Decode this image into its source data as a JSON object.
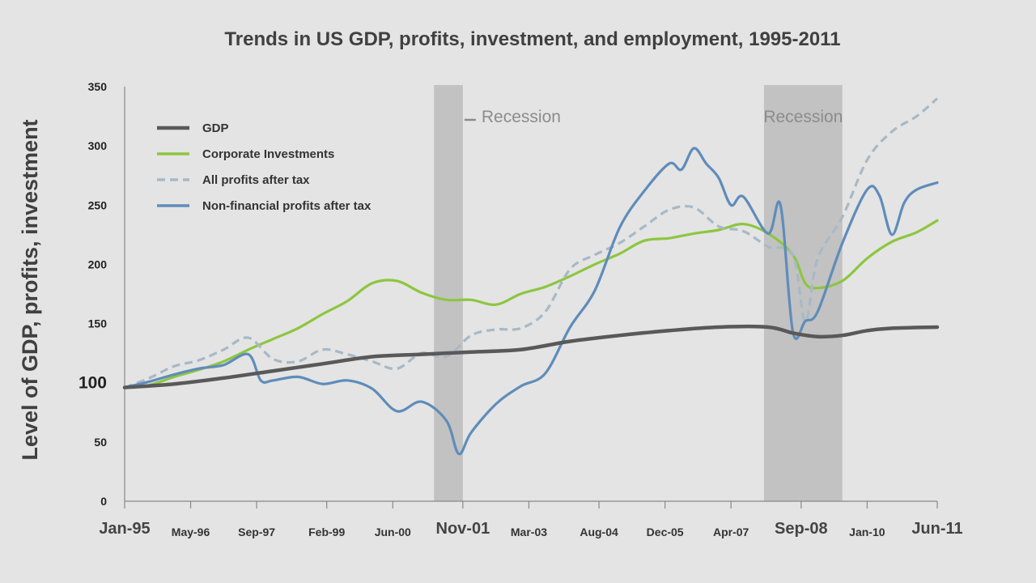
{
  "chart_data": {
    "type": "line",
    "title": "Trends in US GDP, profits, investment, and employment, 1995-2011",
    "ylabel": "Level of GDP, profits, investment",
    "xlabel": "",
    "ylim": [
      0,
      350
    ],
    "xlim": [
      1995.0,
      2011.417
    ],
    "grid": false,
    "legend_position": "top-left",
    "y_ticks": [
      {
        "value": 0,
        "label": "0",
        "big": false
      },
      {
        "value": 50,
        "label": "50",
        "big": false
      },
      {
        "value": 100,
        "label": "100",
        "big": true
      },
      {
        "value": 150,
        "label": "150",
        "big": false
      },
      {
        "value": 200,
        "label": "200",
        "big": false
      },
      {
        "value": 250,
        "label": "250",
        "big": false
      },
      {
        "value": 300,
        "label": "300",
        "big": false
      },
      {
        "value": 350,
        "label": "350",
        "big": false
      }
    ],
    "x_ticks": [
      {
        "value": 1995.0,
        "label": "Jan-95",
        "big": true
      },
      {
        "value": 1996.333,
        "label": "May-96",
        "big": false
      },
      {
        "value": 1997.667,
        "label": "Sep-97",
        "big": false
      },
      {
        "value": 1999.083,
        "label": "Feb-99",
        "big": false
      },
      {
        "value": 2000.417,
        "label": "Jun-00",
        "big": false
      },
      {
        "value": 2001.833,
        "label": "Nov-01",
        "big": true
      },
      {
        "value": 2003.167,
        "label": "Mar-03",
        "big": false
      },
      {
        "value": 2004.583,
        "label": "Aug-04",
        "big": false
      },
      {
        "value": 2005.917,
        "label": "Dec-05",
        "big": false
      },
      {
        "value": 2007.25,
        "label": "Apr-07",
        "big": false
      },
      {
        "value": 2008.667,
        "label": "Sep-08",
        "big": true
      },
      {
        "value": 2010.0,
        "label": "Jan-10",
        "big": false
      },
      {
        "value": 2011.417,
        "label": "Jun-11",
        "big": true
      }
    ],
    "recessions": [
      {
        "start": 2001.25,
        "end": 2001.833,
        "label": "Recession",
        "label_side": "right"
      },
      {
        "start": 2007.917,
        "end": 2009.5,
        "label": "Recession",
        "label_side": "inside"
      }
    ],
    "series": [
      {
        "name": "GDP",
        "color": "#595959",
        "dashed": false,
        "points": [
          [
            1995.0,
            96
          ],
          [
            1996.0,
            99
          ],
          [
            1997.0,
            104
          ],
          [
            1998.0,
            110
          ],
          [
            1999.0,
            116
          ],
          [
            2000.0,
            122
          ],
          [
            2001.0,
            124
          ],
          [
            2002.0,
            126
          ],
          [
            2003.0,
            128
          ],
          [
            2004.0,
            135
          ],
          [
            2005.0,
            140
          ],
          [
            2006.0,
            144
          ],
          [
            2007.0,
            147
          ],
          [
            2008.0,
            147
          ],
          [
            2008.5,
            142
          ],
          [
            2009.0,
            139
          ],
          [
            2009.5,
            140
          ],
          [
            2010.0,
            144
          ],
          [
            2010.5,
            146
          ],
          [
            2011.417,
            147
          ]
        ]
      },
      {
        "name": "Corporate Investments",
        "color": "#8dc63f",
        "dashed": false,
        "points": [
          [
            1995.0,
            96
          ],
          [
            1995.5,
            98
          ],
          [
            1996.0,
            105
          ],
          [
            1996.5,
            111
          ],
          [
            1997.0,
            118
          ],
          [
            1997.5,
            128
          ],
          [
            1998.0,
            137
          ],
          [
            1998.5,
            146
          ],
          [
            1999.0,
            158
          ],
          [
            1999.5,
            169
          ],
          [
            2000.0,
            184
          ],
          [
            2000.5,
            186
          ],
          [
            2001.0,
            176
          ],
          [
            2001.5,
            170
          ],
          [
            2002.0,
            170
          ],
          [
            2002.5,
            166
          ],
          [
            2003.0,
            175
          ],
          [
            2003.5,
            181
          ],
          [
            2004.0,
            190
          ],
          [
            2004.5,
            200
          ],
          [
            2005.0,
            209
          ],
          [
            2005.5,
            220
          ],
          [
            2006.0,
            222
          ],
          [
            2006.5,
            226
          ],
          [
            2007.0,
            229
          ],
          [
            2007.5,
            234
          ],
          [
            2008.0,
            226
          ],
          [
            2008.5,
            208
          ],
          [
            2008.75,
            184
          ],
          [
            2009.0,
            180
          ],
          [
            2009.5,
            186
          ],
          [
            2010.0,
            205
          ],
          [
            2010.5,
            219
          ],
          [
            2011.0,
            227
          ],
          [
            2011.417,
            237
          ]
        ]
      },
      {
        "name": "All profits after tax",
        "color": "#a7b9c7",
        "dashed": true,
        "points": [
          [
            1995.0,
            96
          ],
          [
            1995.5,
            104
          ],
          [
            1996.0,
            114
          ],
          [
            1996.5,
            119
          ],
          [
            1997.0,
            128
          ],
          [
            1997.5,
            138
          ],
          [
            1998.0,
            120
          ],
          [
            1998.5,
            118
          ],
          [
            1999.0,
            128
          ],
          [
            1999.5,
            124
          ],
          [
            2000.0,
            118
          ],
          [
            2000.5,
            112
          ],
          [
            2001.0,
            125
          ],
          [
            2001.5,
            122
          ],
          [
            2002.0,
            140
          ],
          [
            2002.5,
            145
          ],
          [
            2003.0,
            146
          ],
          [
            2003.5,
            160
          ],
          [
            2004.0,
            196
          ],
          [
            2004.5,
            208
          ],
          [
            2005.0,
            218
          ],
          [
            2005.5,
            232
          ],
          [
            2006.0,
            246
          ],
          [
            2006.5,
            248
          ],
          [
            2007.0,
            232
          ],
          [
            2007.5,
            228
          ],
          [
            2008.0,
            215
          ],
          [
            2008.5,
            208
          ],
          [
            2008.75,
            152
          ],
          [
            2009.0,
            205
          ],
          [
            2009.5,
            240
          ],
          [
            2010.0,
            288
          ],
          [
            2010.5,
            312
          ],
          [
            2011.0,
            325
          ],
          [
            2011.417,
            340
          ]
        ]
      },
      {
        "name": "Non-financial profits after tax",
        "color": "#5f8cba",
        "dashed": false,
        "points": [
          [
            1995.0,
            96
          ],
          [
            1995.5,
            101
          ],
          [
            1996.0,
            107
          ],
          [
            1996.5,
            112
          ],
          [
            1997.0,
            115
          ],
          [
            1997.5,
            124
          ],
          [
            1997.75,
            102
          ],
          [
            1998.0,
            102
          ],
          [
            1998.5,
            105
          ],
          [
            1999.0,
            99
          ],
          [
            1999.5,
            102
          ],
          [
            2000.0,
            95
          ],
          [
            2000.5,
            76
          ],
          [
            2001.0,
            84
          ],
          [
            2001.5,
            68
          ],
          [
            2001.75,
            40
          ],
          [
            2002.0,
            58
          ],
          [
            2002.5,
            82
          ],
          [
            2003.0,
            97
          ],
          [
            2003.5,
            108
          ],
          [
            2004.0,
            147
          ],
          [
            2004.5,
            178
          ],
          [
            2005.0,
            231
          ],
          [
            2005.5,
            262
          ],
          [
            2006.0,
            285
          ],
          [
            2006.25,
            280
          ],
          [
            2006.5,
            298
          ],
          [
            2006.75,
            285
          ],
          [
            2007.0,
            273
          ],
          [
            2007.25,
            250
          ],
          [
            2007.5,
            257
          ],
          [
            2008.0,
            226
          ],
          [
            2008.25,
            250
          ],
          [
            2008.5,
            143
          ],
          [
            2008.75,
            152
          ],
          [
            2009.0,
            160
          ],
          [
            2009.5,
            218
          ],
          [
            2010.0,
            263
          ],
          [
            2010.25,
            258
          ],
          [
            2010.5,
            225
          ],
          [
            2010.75,
            252
          ],
          [
            2011.0,
            263
          ],
          [
            2011.417,
            269
          ]
        ]
      }
    ]
  }
}
